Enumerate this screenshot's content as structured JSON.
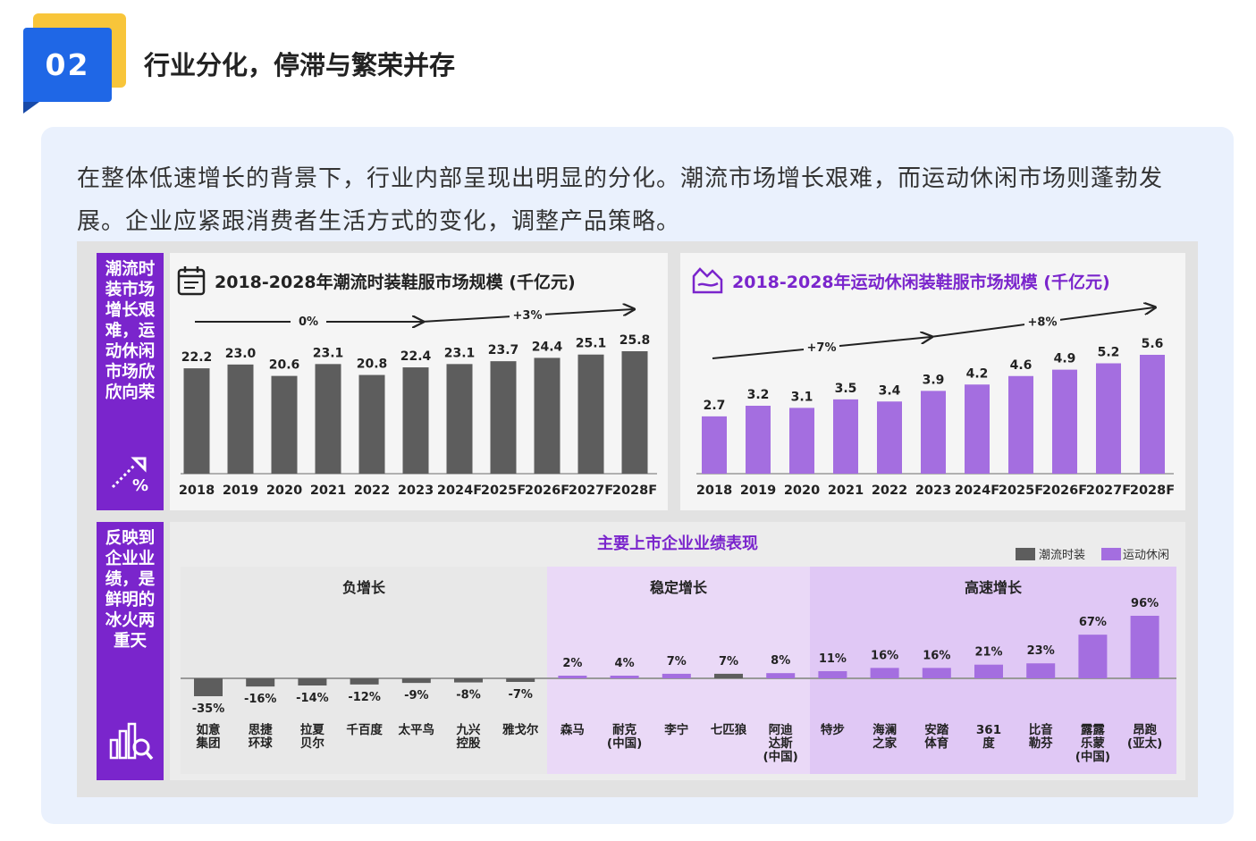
{
  "header": {
    "badge_number": "02",
    "title": "行业分化，停滞与繁荣并存"
  },
  "intro_text": "在整体低速增长的背景下，行业内部呈现出明显的分化。潮流市场增长艰难，而运动休闲市场则蓬勃发展。企业应紧跟消费者生活方式的变化，调整产品策略。",
  "sidebar_top": {
    "text": "潮流时\n装市场\n增长艰\n难，运\n动休闲\n市场欣\n欣向荣",
    "icon": "growth-percent-icon"
  },
  "sidebar_bottom": {
    "text": "反映到\n企业业\n绩，是\n鲜明的\n冰火两\n重天",
    "icon": "analytics-chart-icon"
  },
  "colors": {
    "accent_blue": "#1f67e6",
    "badge_yellow": "#f8c53a",
    "purple": "#7a25cc",
    "bar_gray": "#5d5d5d",
    "bar_purple": "#a46ee0"
  },
  "chart_data": [
    {
      "type": "bar",
      "title": "2018-2028年潮流时装鞋服市场规模 (千亿元)",
      "categories": [
        "2018",
        "2019",
        "2020",
        "2021",
        "2022",
        "2023",
        "2024F",
        "2025F",
        "2026F",
        "2027F",
        "2028F"
      ],
      "values": [
        22.2,
        23.0,
        20.6,
        23.1,
        20.8,
        22.4,
        23.1,
        23.7,
        24.4,
        25.1,
        25.8
      ],
      "value_labels": [
        "22.2",
        "23.0",
        "20.6",
        "23.1",
        "20.8",
        "22.4",
        "23.1",
        "23.7",
        "24.4",
        "25.1",
        "25.8"
      ],
      "annotations": [
        "0%",
        "+3%"
      ],
      "color": "#5d5d5d",
      "icon": "calendar-icon"
    },
    {
      "type": "bar",
      "title": "2018-2028年运动休闲装鞋服市场规模 (千亿元)",
      "categories": [
        "2018",
        "2019",
        "2020",
        "2021",
        "2022",
        "2023",
        "2024F",
        "2025F",
        "2026F",
        "2027F",
        "2028F"
      ],
      "values": [
        2.7,
        3.2,
        3.1,
        3.5,
        3.4,
        3.9,
        4.2,
        4.6,
        4.9,
        5.2,
        5.6
      ],
      "value_labels": [
        "2.7",
        "3.2",
        "3.1",
        "3.5",
        "3.4",
        "3.9",
        "4.2",
        "4.6",
        "4.9",
        "5.2",
        "5.6"
      ],
      "annotations": [
        "+7%",
        "+8%"
      ],
      "color": "#a46ee0",
      "icon": "mountain-icon"
    },
    {
      "type": "bar",
      "title": "主要上市企业业绩表现",
      "legend": [
        "潮流时装",
        "运动休闲"
      ],
      "groups": [
        "负增长",
        "稳定增长",
        "高速增长"
      ],
      "categories": [
        "如意\n集团",
        "思捷\n环球",
        "拉夏\n贝尔",
        "千百度",
        "太平鸟",
        "九兴\n控股",
        "雅戈尔",
        "森马",
        "耐克\n(中国)",
        "李宁",
        "七匹狼",
        "阿迪\n达斯\n(中国)",
        "特步",
        "海澜\n之家",
        "安踏\n体育",
        "361\n度",
        "比音\n勒芬",
        "露露\n乐蒙\n(中国)",
        "昂跑\n(亚太)"
      ],
      "values": [
        -35,
        -16,
        -14,
        -12,
        -9,
        -8,
        -7,
        2,
        4,
        7,
        7,
        8,
        11,
        16,
        16,
        21,
        23,
        67,
        96
      ],
      "value_labels": [
        "-35%",
        "-16%",
        "-14%",
        "-12%",
        "-9%",
        "-8%",
        "-7%",
        "2%",
        "4%",
        "7%",
        "7%",
        "8%",
        "11%",
        "16%",
        "16%",
        "21%",
        "23%",
        "67%",
        "96%"
      ],
      "series_type": [
        "fashion",
        "fashion",
        "fashion",
        "fashion",
        "fashion",
        "fashion",
        "fashion",
        "sport",
        "sport",
        "sport",
        "fashion",
        "sport",
        "sport",
        "sport",
        "sport",
        "sport",
        "sport",
        "sport",
        "sport"
      ],
      "group_index": [
        0,
        0,
        0,
        0,
        0,
        0,
        0,
        1,
        1,
        1,
        1,
        1,
        2,
        2,
        2,
        2,
        2,
        2,
        2
      ]
    }
  ]
}
